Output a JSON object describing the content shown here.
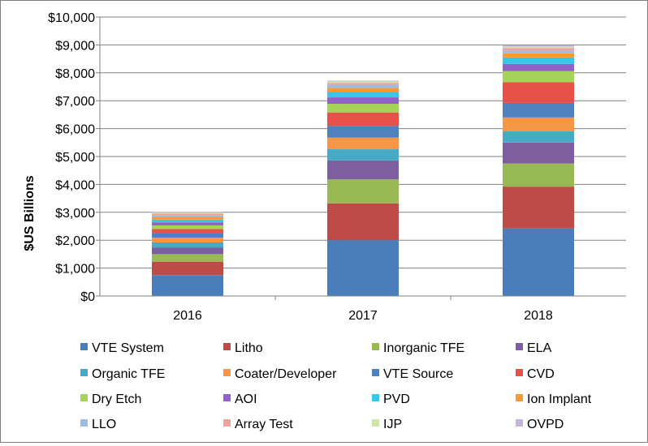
{
  "chart_data": {
    "type": "bar",
    "stacked": true,
    "title": "",
    "xlabel": "",
    "ylabel": "$US Billions",
    "ylim": [
      0,
      10000
    ],
    "yticks": [
      0,
      1000,
      2000,
      3000,
      4000,
      5000,
      6000,
      7000,
      8000,
      9000,
      10000
    ],
    "ytick_labels": [
      "$0",
      "$1,000",
      "$2,000",
      "$3,000",
      "$4,000",
      "$5,000",
      "$6,000",
      "$7,000",
      "$8,000",
      "$9,000",
      "$10,000"
    ],
    "categories": [
      "2016",
      "2017",
      "2018"
    ],
    "legend_position": "bottom",
    "grid": "horizontal",
    "series": [
      {
        "name": "VTE System",
        "color": "#4a7ebb",
        "values": [
          750,
          2000,
          2420
        ]
      },
      {
        "name": "Litho",
        "color": "#be4b48",
        "values": [
          480,
          1320,
          1500
        ]
      },
      {
        "name": "Inorganic TFE",
        "color": "#98b954",
        "values": [
          270,
          860,
          830
        ]
      },
      {
        "name": "ELA",
        "color": "#7d5fa0",
        "values": [
          230,
          680,
          750
        ]
      },
      {
        "name": "Organic TFE",
        "color": "#46aac5",
        "values": [
          190,
          400,
          400
        ]
      },
      {
        "name": "Coater/Developer",
        "color": "#f79646",
        "values": [
          170,
          420,
          500
        ]
      },
      {
        "name": "VTE Source",
        "color": "#4f81bd",
        "values": [
          160,
          420,
          520
        ]
      },
      {
        "name": "CVD",
        "color": "#e8504a",
        "values": [
          150,
          480,
          740
        ]
      },
      {
        "name": "Dry Etch",
        "color": "#a6d45a",
        "values": [
          130,
          310,
          400
        ]
      },
      {
        "name": "AOI",
        "color": "#9461c7",
        "values": [
          110,
          230,
          260
        ]
      },
      {
        "name": "PVD",
        "color": "#37c7e8",
        "values": [
          100,
          190,
          230
        ]
      },
      {
        "name": "Ion Implant",
        "color": "#f79a34",
        "values": [
          80,
          150,
          150
        ]
      },
      {
        "name": "LLO",
        "color": "#9bbce6",
        "values": [
          70,
          110,
          100
        ]
      },
      {
        "name": "Array Test",
        "color": "#f0a2a0",
        "values": [
          60,
          70,
          90
        ]
      },
      {
        "name": "IJP",
        "color": "#cfe6ab",
        "values": [
          40,
          50,
          50
        ]
      },
      {
        "name": "OVPD",
        "color": "#c3b6da",
        "values": [
          30,
          30,
          40
        ]
      }
    ]
  }
}
